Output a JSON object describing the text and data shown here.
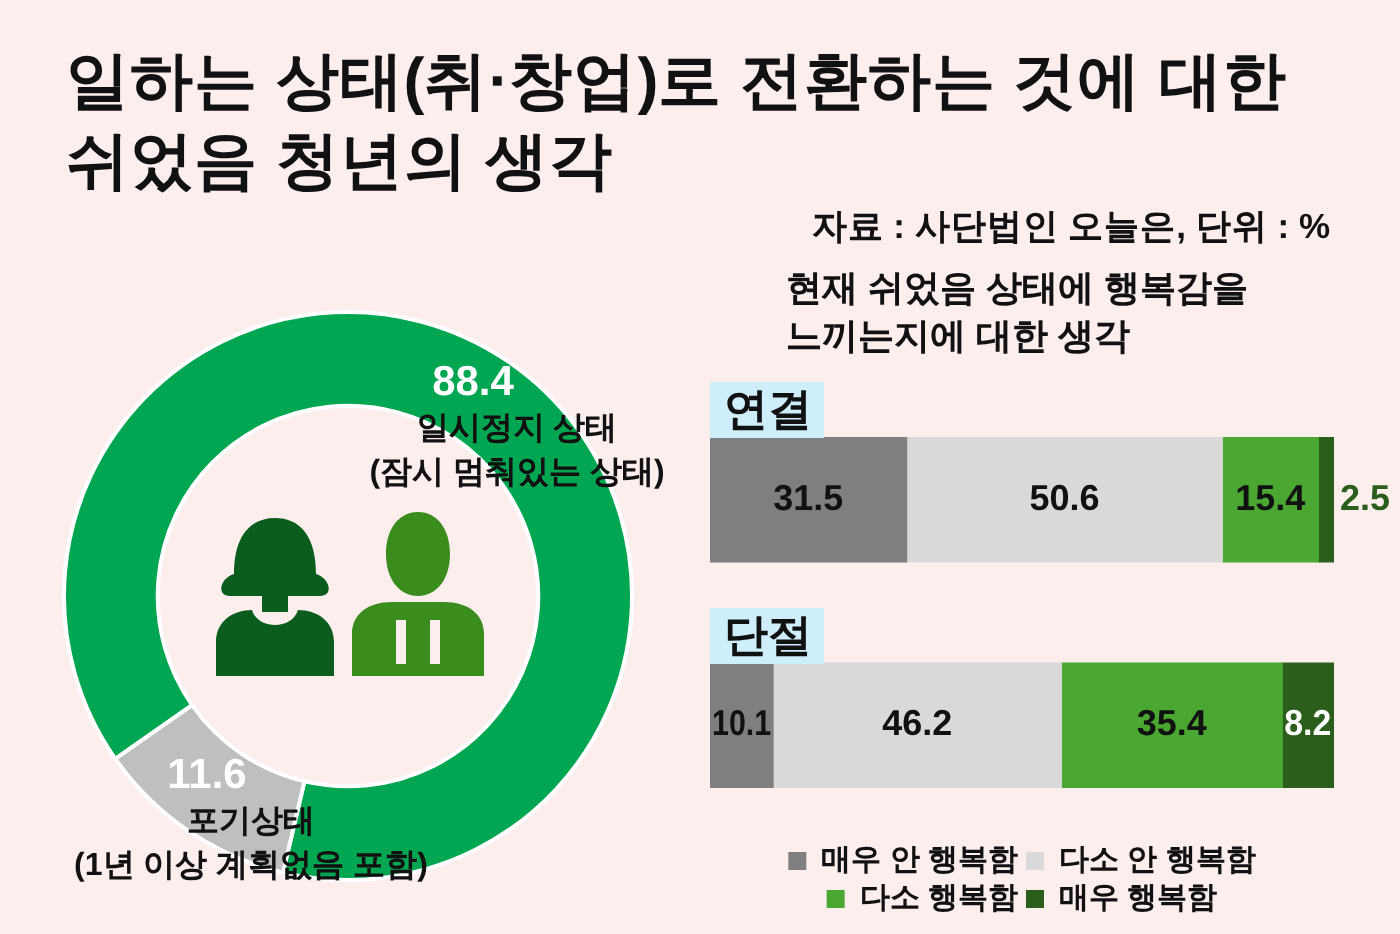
{
  "chart_data": [
    {
      "type": "donut",
      "title": "일하는 상태(취·창업)로 전환하는 것에 대한\n쉬었음 청년의 생각",
      "annotations": [
        "자료 : 사단법인 오늘은, 단위 : %"
      ],
      "categories": [
        "일시정지 상태\n(잠시 멈춰있는 상태)",
        "포기상태\n(1년 이상 계획없음 포함)"
      ],
      "values": [
        88.4,
        11.6
      ],
      "colors": [
        "#00a651",
        "#bfbfbf"
      ],
      "data_labels": true
    },
    {
      "type": "bar",
      "orientation": "horizontal",
      "stacked": true,
      "title": "현재 쉬었음 상태에 행복감을\n느끼는지에 대한 생각",
      "categories": [
        "연결",
        "단절"
      ],
      "series": [
        {
          "name": "매우 안 행복함",
          "color": "#7f7f7f",
          "values": [
            31.5,
            10.1
          ]
        },
        {
          "name": "다소 안 행복함",
          "color": "#d9d9d9",
          "values": [
            50.6,
            46.2
          ]
        },
        {
          "name": "다소 행복함",
          "color": "#4aa832",
          "values": [
            15.4,
            35.4
          ]
        },
        {
          "name": "매우 행복함",
          "color": "#2a5e1a",
          "values": [
            2.5,
            8.2
          ]
        }
      ],
      "data_labels": true,
      "legend": "bottom",
      "tick_labels": "y"
    }
  ]
}
